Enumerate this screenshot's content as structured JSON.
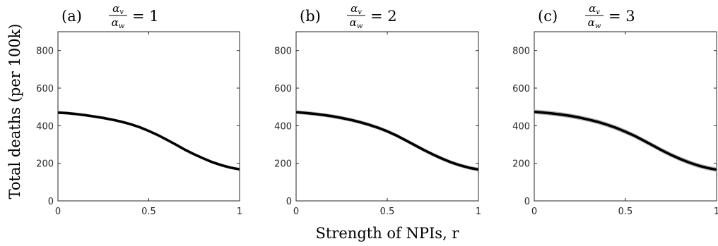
{
  "figure": {
    "ylabel": "Total deaths (per 100k)",
    "xlabel": "Strength of NPIs, r"
  },
  "chart_data": [
    {
      "type": "line",
      "panel_label": "(a)",
      "title_num": "α",
      "title_num_sub": "v",
      "title_den": "α",
      "title_den_sub": "w",
      "title_rhs": "= 1",
      "xlim": [
        0,
        1
      ],
      "ylim": [
        0,
        900
      ],
      "xticks": [
        0,
        0.5,
        1
      ],
      "xtick_labels": [
        "0",
        "0.5",
        "1"
      ],
      "yticks": [
        0,
        200,
        400,
        600,
        800
      ],
      "ytick_labels": [
        "0",
        "200",
        "400",
        "600",
        "800"
      ],
      "grid": false,
      "band_color": "#b3b3b3",
      "line_color": "#000000",
      "x": [
        0,
        0.05,
        0.1,
        0.15,
        0.2,
        0.25,
        0.3,
        0.35,
        0.4,
        0.45,
        0.5,
        0.55,
        0.6,
        0.65,
        0.7,
        0.75,
        0.8,
        0.85,
        0.9,
        0.95,
        1
      ],
      "y": [
        470,
        467,
        462,
        456,
        449,
        441,
        432,
        421,
        408,
        392,
        372,
        350,
        325,
        299,
        272,
        248,
        226,
        206,
        190,
        177,
        168
      ],
      "band_half_width": 8
    },
    {
      "type": "line",
      "panel_label": "(b)",
      "title_num": "α",
      "title_num_sub": "v",
      "title_den": "α",
      "title_den_sub": "w",
      "title_rhs": "= 2",
      "xlim": [
        0,
        1
      ],
      "ylim": [
        0,
        900
      ],
      "xticks": [
        0,
        0.5,
        1
      ],
      "xtick_labels": [
        "0",
        "0.5",
        "1"
      ],
      "yticks": [
        0,
        200,
        400,
        600,
        800
      ],
      "ytick_labels": [
        "0",
        "200",
        "400",
        "600",
        "800"
      ],
      "grid": false,
      "band_color": "#b3b3b3",
      "line_color": "#000000",
      "x": [
        0,
        0.05,
        0.1,
        0.15,
        0.2,
        0.25,
        0.3,
        0.35,
        0.4,
        0.45,
        0.5,
        0.55,
        0.6,
        0.65,
        0.7,
        0.75,
        0.8,
        0.85,
        0.9,
        0.95,
        1
      ],
      "y": [
        472,
        468,
        463,
        457,
        450,
        441,
        431,
        419,
        405,
        389,
        370,
        348,
        323,
        297,
        271,
        247,
        225,
        205,
        189,
        176,
        167
      ],
      "band_half_width": 10
    },
    {
      "type": "line",
      "panel_label": "(c)",
      "title_num": "α",
      "title_num_sub": "v",
      "title_den": "α",
      "title_den_sub": "w",
      "title_rhs": "= 3",
      "xlim": [
        0,
        1
      ],
      "ylim": [
        0,
        900
      ],
      "xticks": [
        0,
        0.5,
        1
      ],
      "xtick_labels": [
        "0",
        "0.5",
        "1"
      ],
      "yticks": [
        0,
        200,
        400,
        600,
        800
      ],
      "ytick_labels": [
        "0",
        "200",
        "400",
        "600",
        "800"
      ],
      "grid": false,
      "band_color": "#b3b3b3",
      "line_color": "#000000",
      "x": [
        0,
        0.05,
        0.1,
        0.15,
        0.2,
        0.25,
        0.3,
        0.35,
        0.4,
        0.45,
        0.5,
        0.55,
        0.6,
        0.65,
        0.7,
        0.75,
        0.8,
        0.85,
        0.9,
        0.95,
        1
      ],
      "y": [
        474,
        470,
        465,
        459,
        452,
        443,
        432,
        420,
        405,
        388,
        368,
        346,
        321,
        295,
        269,
        245,
        223,
        204,
        188,
        175,
        166
      ],
      "band_half_width": 12
    }
  ]
}
